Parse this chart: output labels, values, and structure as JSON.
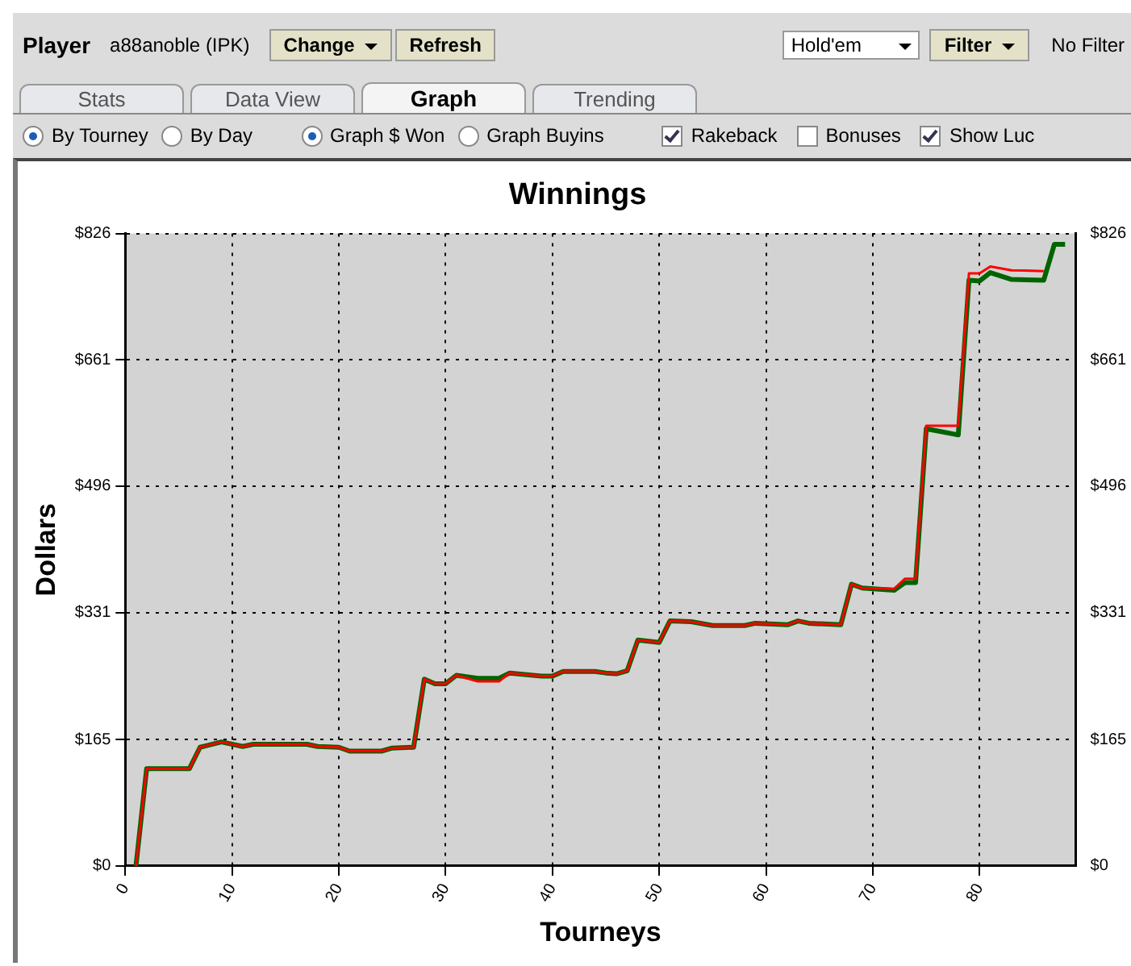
{
  "chart_data": {
    "type": "line",
    "title": "Winnings",
    "xlabel": "Tourneys",
    "ylabel": "Dollars",
    "annotations": [
      "Player",
      "a88anoble (IPK)",
      "Change",
      "Refresh",
      "Hold'em",
      "Filter",
      "No Filter",
      "Stats",
      "Data View",
      "Graph",
      "Trending",
      "By Tourney",
      "By Day",
      "Graph $ Won",
      "Graph Buyins",
      "Rakeback",
      "Bonuses",
      "Show Luc"
    ],
    "x": [
      1,
      2,
      6,
      7,
      9,
      11,
      12,
      17,
      18,
      20,
      21,
      24,
      25,
      27,
      28,
      29,
      30,
      31,
      33,
      35,
      36,
      39,
      40,
      41,
      44,
      45,
      46,
      47,
      48,
      50,
      51,
      53,
      55,
      58,
      59,
      62,
      63,
      64,
      67,
      68,
      69,
      72,
      73,
      74,
      75,
      78,
      79,
      80,
      81,
      83,
      86,
      87,
      88
    ],
    "series": [
      {
        "color": "#ff0000",
        "values": [
          0,
          127,
          127,
          155,
          162,
          156,
          159,
          159,
          156,
          155,
          150,
          150,
          154,
          155,
          244,
          238,
          238,
          249,
          241,
          241,
          252,
          248,
          248,
          254,
          254,
          252,
          251,
          255,
          295,
          292,
          320,
          319,
          314,
          314,
          317,
          315,
          320,
          317,
          315,
          368,
          363,
          362,
          375,
          375,
          575,
          575,
          774,
          774,
          783,
          778,
          777,
          null,
          null
        ]
      },
      {
        "color": "#006400",
        "values": [
          0,
          127,
          127,
          155,
          162,
          156,
          159,
          159,
          156,
          155,
          150,
          150,
          154,
          155,
          244,
          238,
          238,
          249,
          245,
          245,
          252,
          248,
          248,
          254,
          254,
          252,
          251,
          255,
          295,
          292,
          320,
          319,
          314,
          314,
          317,
          315,
          320,
          317,
          315,
          368,
          363,
          360,
          370,
          370,
          571,
          563,
          765,
          764,
          775,
          766,
          765,
          812,
          812
        ]
      }
    ],
    "xlim": [
      0,
      89
    ],
    "xticks": [
      0,
      10,
      20,
      30,
      40,
      50,
      60,
      70,
      80
    ],
    "ylim": [
      0,
      826
    ],
    "yticks": [
      {
        "value": 0,
        "label": "$0"
      },
      {
        "value": 165,
        "label": "$165"
      },
      {
        "value": 331,
        "label": "$331"
      },
      {
        "value": 496,
        "label": "$496"
      },
      {
        "value": 661,
        "label": "$661"
      },
      {
        "value": 826,
        "label": "$826"
      }
    ],
    "y2lim": [
      0,
      826
    ],
    "y2ticks": [
      {
        "value": 0,
        "label": "$0"
      },
      {
        "value": 165,
        "label": "$165"
      },
      {
        "value": 331,
        "label": "$331"
      },
      {
        "value": 496,
        "label": "$496"
      },
      {
        "value": 661,
        "label": "$661"
      },
      {
        "value": 826,
        "label": "$826"
      }
    ],
    "grid": true,
    "legend": false,
    "marker": "none",
    "line_style": "solid"
  }
}
